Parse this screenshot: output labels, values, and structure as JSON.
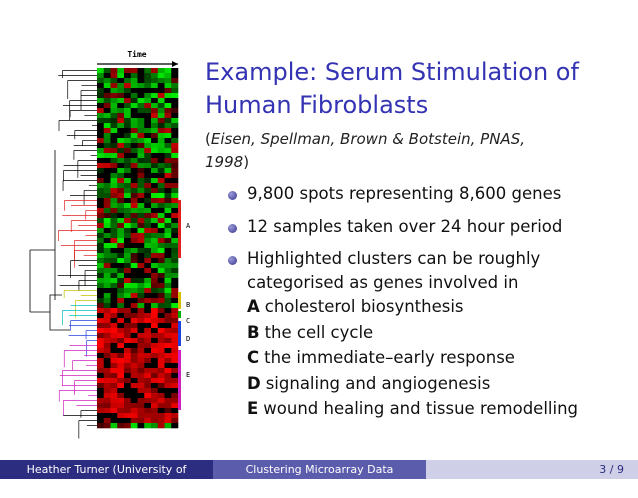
{
  "figure": {
    "axis_label": "Time",
    "cluster_labels": [
      "A",
      "B",
      "C",
      "D",
      "E"
    ]
  },
  "title": {
    "lines": [
      "Example:  Serum Stimulation of",
      "Human Fibroblasts"
    ]
  },
  "citation": {
    "open": "(",
    "lines": [
      "Eisen, Spellman, Brown & Botstein, PNAS,",
      "1998"
    ],
    "close": ")"
  },
  "bullets": [
    {
      "lines": [
        "9,800 spots representing 8,600 genes"
      ]
    },
    {
      "lines": [
        "12 samples taken over 24 hour period"
      ]
    },
    {
      "lines": [
        "Highlighted clusters can be roughly",
        "categorised as genes involved in"
      ],
      "clusters": [
        {
          "letter": "A",
          "text": "cholesterol biosynthesis"
        },
        {
          "letter": "B",
          "text": "the cell cycle"
        },
        {
          "letter": "C",
          "text": "the immediate–early response"
        },
        {
          "letter": "D",
          "text": "signaling and angiogenesis"
        },
        {
          "letter": "E",
          "text": "wound healing and tissue remodelling"
        }
      ]
    }
  ],
  "footer": {
    "author": "Heather Turner  (University of Warwick)",
    "talk": "Clustering Microarray Data",
    "page": "3 / 9"
  }
}
